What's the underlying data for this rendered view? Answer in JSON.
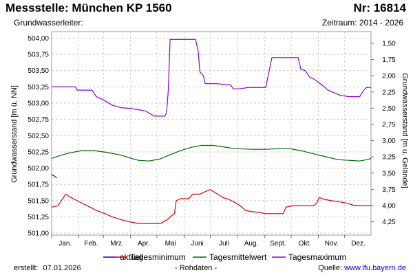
{
  "header": {
    "title": "Messstelle: München KP 1560",
    "number": "Nr: 16814",
    "aquifer": "Grundwasserleiter:",
    "period": "Zeitraum: 2014 - 2026"
  },
  "footer": {
    "created_label": "erstellt:",
    "created_date": "07.01.2026",
    "note": "- Rohdaten -",
    "source_label": "Quelle:",
    "source_link": "www.lfu.bayern.de"
  },
  "colors": {
    "aktuell": "#0000cc",
    "min": "#dd0000",
    "mittel": "#006600",
    "max": "#8800dd",
    "grid": "#cccccc"
  },
  "chart_data": {
    "type": "line",
    "x_unit": "day of year",
    "months": [
      "Jan.",
      "Feb.",
      "Mrz.",
      "Apr.",
      "Mai",
      "Juni",
      "Juli",
      "Aug.",
      "Sept.",
      "Okt.",
      "Nov.",
      "Dez."
    ],
    "xlim": [
      1,
      365
    ],
    "ylabel": "Grundwasserstand [m ü. NN]",
    "ylim": [
      500.97,
      504.1
    ],
    "yticks": [
      "504,00",
      "503,75",
      "503,50",
      "503,25",
      "503,00",
      "502,75",
      "502,50",
      "502,25",
      "502,00",
      "501,75",
      "501,50",
      "501,25",
      "501,00"
    ],
    "y2label": "Grundwasserstand [m u. Gelände]",
    "y2ticks": [
      "1,50",
      "1,75",
      "2,00",
      "2,25",
      "2,50",
      "2,75",
      "3,00",
      "3,25",
      "3,50",
      "3,75",
      "4,00",
      "4,25"
    ],
    "grid": true,
    "legend_position": "bottom",
    "series": [
      {
        "name": "aktuell",
        "color_key": "aktuell",
        "points": [
          [
            1,
            501.9
          ],
          [
            4,
            501.88
          ],
          [
            7,
            501.85
          ]
        ]
      },
      {
        "name": "Tagesminimum",
        "color_key": "min",
        "points": [
          [
            1,
            501.4
          ],
          [
            8,
            501.42
          ],
          [
            17,
            501.6
          ],
          [
            23,
            501.55
          ],
          [
            30,
            501.5
          ],
          [
            37,
            501.45
          ],
          [
            45,
            501.4
          ],
          [
            52,
            501.35
          ],
          [
            62,
            501.3
          ],
          [
            70,
            501.25
          ],
          [
            82,
            501.2
          ],
          [
            92,
            501.17
          ],
          [
            100,
            501.15
          ],
          [
            112,
            501.15
          ],
          [
            125,
            501.15
          ],
          [
            132,
            501.2
          ],
          [
            138,
            501.27
          ],
          [
            141,
            501.3
          ],
          [
            143,
            501.5
          ],
          [
            148,
            501.53
          ],
          [
            157,
            501.53
          ],
          [
            162,
            501.6
          ],
          [
            170,
            501.6
          ],
          [
            178,
            501.65
          ],
          [
            182,
            501.67
          ],
          [
            190,
            501.6
          ],
          [
            196,
            501.55
          ],
          [
            203,
            501.52
          ],
          [
            210,
            501.47
          ],
          [
            216,
            501.42
          ],
          [
            222,
            501.35
          ],
          [
            230,
            501.33
          ],
          [
            238,
            501.32
          ],
          [
            244,
            501.3
          ],
          [
            256,
            501.3
          ],
          [
            265,
            501.3
          ],
          [
            268,
            501.4
          ],
          [
            275,
            501.42
          ],
          [
            290,
            501.42
          ],
          [
            300,
            501.42
          ],
          [
            303,
            501.46
          ],
          [
            306,
            501.55
          ],
          [
            312,
            501.52
          ],
          [
            320,
            501.5
          ],
          [
            330,
            501.48
          ],
          [
            338,
            501.46
          ],
          [
            345,
            501.43
          ],
          [
            355,
            501.42
          ],
          [
            365,
            501.42
          ]
        ]
      },
      {
        "name": "Tagesmittelwert",
        "color_key": "mittel",
        "points": [
          [
            1,
            502.15
          ],
          [
            10,
            502.19
          ],
          [
            20,
            502.23
          ],
          [
            35,
            502.27
          ],
          [
            50,
            502.27
          ],
          [
            65,
            502.24
          ],
          [
            80,
            502.2
          ],
          [
            92,
            502.15
          ],
          [
            100,
            502.12
          ],
          [
            112,
            502.11
          ],
          [
            124,
            502.14
          ],
          [
            135,
            502.2
          ],
          [
            148,
            502.27
          ],
          [
            160,
            502.32
          ],
          [
            172,
            502.35
          ],
          [
            185,
            502.35
          ],
          [
            195,
            502.33
          ],
          [
            210,
            502.3
          ],
          [
            230,
            502.29
          ],
          [
            245,
            502.29
          ],
          [
            260,
            502.3
          ],
          [
            272,
            502.3
          ],
          [
            285,
            502.27
          ],
          [
            300,
            502.22
          ],
          [
            315,
            502.17
          ],
          [
            328,
            502.13
          ],
          [
            340,
            502.12
          ],
          [
            352,
            502.11
          ],
          [
            360,
            502.13
          ],
          [
            365,
            502.15
          ]
        ]
      },
      {
        "name": "Tagesmaximum",
        "color_key": "max",
        "points": [
          [
            1,
            503.25
          ],
          [
            28,
            503.25
          ],
          [
            30,
            503.2
          ],
          [
            47,
            503.2
          ],
          [
            52,
            503.1
          ],
          [
            60,
            503.05
          ],
          [
            70,
            502.97
          ],
          [
            80,
            502.93
          ],
          [
            90,
            502.92
          ],
          [
            100,
            502.9
          ],
          [
            108,
            502.88
          ],
          [
            118,
            502.8
          ],
          [
            130,
            502.8
          ],
          [
            132,
            502.85
          ],
          [
            134,
            503.2
          ],
          [
            136,
            503.98
          ],
          [
            165,
            503.98
          ],
          [
            168,
            503.8
          ],
          [
            170,
            503.48
          ],
          [
            174,
            503.42
          ],
          [
            176,
            503.3
          ],
          [
            190,
            503.3
          ],
          [
            200,
            503.28
          ],
          [
            205,
            503.28
          ],
          [
            208,
            503.22
          ],
          [
            215,
            503.22
          ],
          [
            225,
            503.24
          ],
          [
            245,
            503.24
          ],
          [
            249,
            503.5
          ],
          [
            252,
            503.7
          ],
          [
            282,
            503.7
          ],
          [
            285,
            503.52
          ],
          [
            290,
            503.5
          ],
          [
            295,
            503.4
          ],
          [
            300,
            503.37
          ],
          [
            310,
            503.27
          ],
          [
            316,
            503.2
          ],
          [
            323,
            503.16
          ],
          [
            330,
            503.12
          ],
          [
            340,
            503.1
          ],
          [
            352,
            503.1
          ],
          [
            357,
            503.2
          ],
          [
            360,
            503.24
          ],
          [
            365,
            503.24
          ]
        ]
      }
    ]
  }
}
